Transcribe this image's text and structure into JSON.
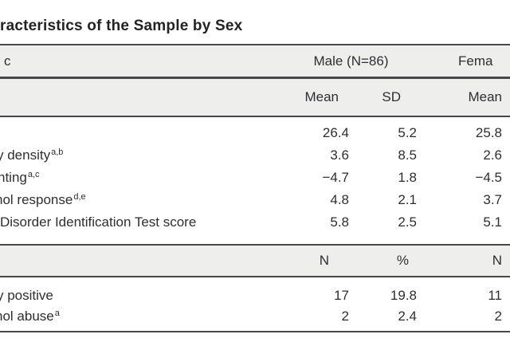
{
  "title": "racteristics of the Sample by Sex",
  "colors": {
    "band_background": "#eeefec",
    "rule": "#47474a",
    "text": "#2e2e33"
  },
  "table": {
    "header": {
      "characteristic_label": "c",
      "group_male": "Male (N=86)",
      "group_female": "Fema"
    },
    "subheader_mean": {
      "col1": "Mean",
      "col2": "SD",
      "col3": "Mean"
    },
    "mean_rows": [
      {
        "label": "",
        "sup": "",
        "mean_male": "26.4",
        "sd_male": "5.2",
        "mean_female": "25.8"
      },
      {
        "label": "y density",
        "sup": "a,b",
        "mean_male": "3.6",
        "sd_male": "8.5",
        "mean_female": "2.6"
      },
      {
        "label": "nting",
        "sup": "a,c",
        "mean_male": "−4.7",
        "sd_male": "1.8",
        "mean_female": "−4.5"
      },
      {
        "label": "hol response",
        "sup": "d,e",
        "mean_male": "4.8",
        "sd_male": "2.1",
        "mean_female": "3.7"
      },
      {
        "label": "Disorder Identification Test score",
        "sup": "",
        "mean_male": "5.8",
        "sd_male": "2.5",
        "mean_female": "5.1"
      }
    ],
    "subheader_count": {
      "col1": "N",
      "col2": "%",
      "col3": "N"
    },
    "count_rows": [
      {
        "label": "y positive",
        "sup": "",
        "n_male": "17",
        "pct_male": "19.8",
        "n_female": "11"
      },
      {
        "label": "hol abuse",
        "sup": "a",
        "n_male": "2",
        "pct_male": "2.4",
        "n_female": "2"
      }
    ]
  }
}
